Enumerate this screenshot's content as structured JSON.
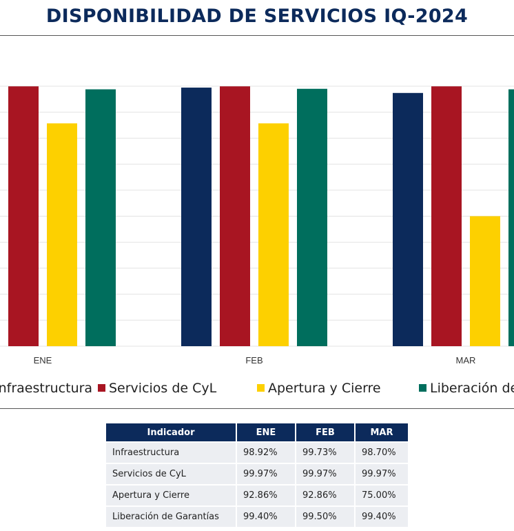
{
  "title": "DISPONIBILIDAD DE SERVICIOS IQ-2024",
  "colors": {
    "Infraestructura": "#0c2a5b",
    "Servicios de CyL": "#a81522",
    "Apertura y Cierre": "#fdd000",
    "Liberación de Garantías": "#006e5d",
    "gridline": "#e3e3e3"
  },
  "legend": [
    "Infraestructura",
    "Servicios de CyL",
    "Apertura y Cierre",
    "Liberación de Garantías"
  ],
  "chart_data": {
    "type": "bar",
    "title": "DISPONIBILIDAD DE SERVICIOS IQ-2024",
    "categories": [
      "ENE",
      "FEB",
      "MAR"
    ],
    "series": [
      {
        "name": "Infraestructura",
        "values": [
          98.92,
          99.73,
          98.7
        ]
      },
      {
        "name": "Servicios de CyL",
        "values": [
          99.97,
          99.97,
          99.97
        ]
      },
      {
        "name": "Apertura y Cierre",
        "values": [
          92.86,
          92.86,
          75.0
        ]
      },
      {
        "name": "Liberación de Garantías",
        "values": [
          99.4,
          99.5,
          99.4
        ]
      }
    ],
    "ylim": [
      50,
      100
    ],
    "grid": true,
    "legend_position": "bottom"
  },
  "table": {
    "headers": [
      "Indicador",
      "ENE",
      "FEB",
      "MAR"
    ],
    "rows": [
      [
        "Infraestructura",
        "98.92%",
        "99.73%",
        "98.70%"
      ],
      [
        "Servicios de CyL",
        "99.97%",
        "99.97%",
        "99.97%"
      ],
      [
        "Apertura y Cierre",
        "92.86%",
        "92.86%",
        "75.00%"
      ],
      [
        "Liberación de Garantías",
        "99.40%",
        "99.50%",
        "99.40%"
      ]
    ]
  }
}
